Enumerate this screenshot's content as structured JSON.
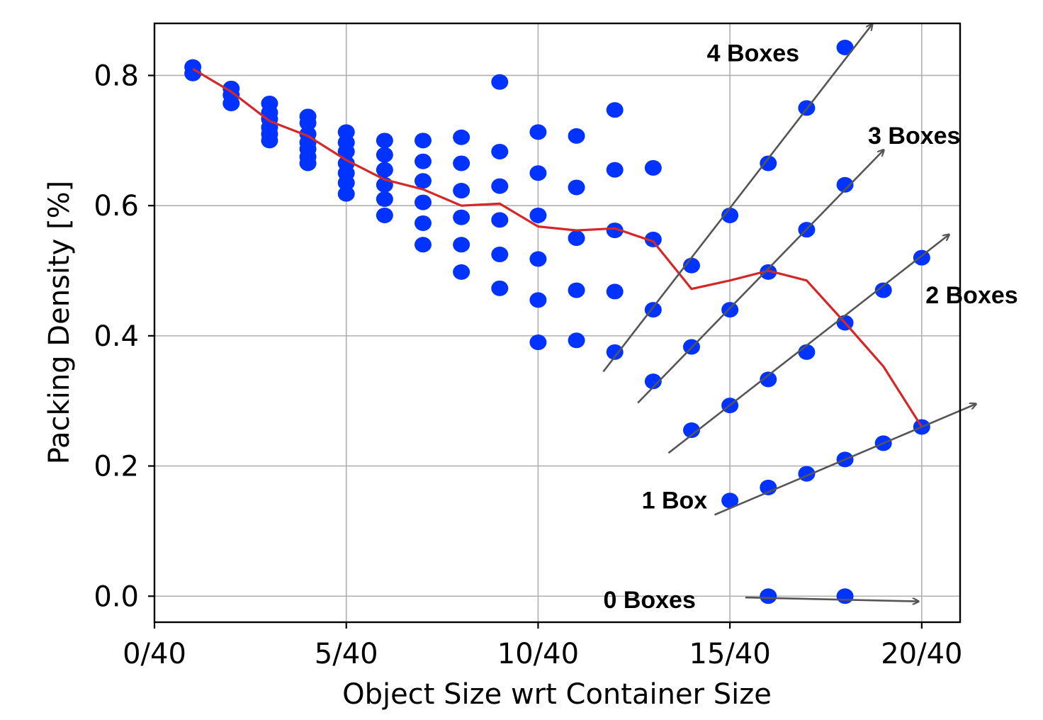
{
  "chart_data": {
    "type": "scatter",
    "xlabel": "Object Size wrt Container Size",
    "ylabel": "Packing Density [%]",
    "xlim": [
      0,
      21
    ],
    "ylim": [
      -0.04,
      0.88
    ],
    "x_ticks": [
      {
        "value": 0,
        "label": "0/40"
      },
      {
        "value": 5,
        "label": "5/40"
      },
      {
        "value": 10,
        "label": "10/40"
      },
      {
        "value": 15,
        "label": "15/40"
      },
      {
        "value": 20,
        "label": "20/40"
      }
    ],
    "y_ticks": [
      {
        "value": 0.0,
        "label": "0.0"
      },
      {
        "value": 0.2,
        "label": "0.2"
      },
      {
        "value": 0.4,
        "label": "0.4"
      },
      {
        "value": 0.6,
        "label": "0.6"
      },
      {
        "value": 0.8,
        "label": "0.8"
      }
    ],
    "grid": true,
    "colors": {
      "points": "#0033ff",
      "mean_line": "#d62728",
      "arrows": "#555555"
    },
    "series": [
      {
        "kind": "scatter",
        "points": [
          [
            1,
            0.813
          ],
          [
            1,
            0.803
          ],
          [
            2,
            0.78
          ],
          [
            2,
            0.77
          ],
          [
            2,
            0.757
          ],
          [
            3,
            0.757
          ],
          [
            3,
            0.743
          ],
          [
            3,
            0.733
          ],
          [
            3,
            0.72
          ],
          [
            3,
            0.71
          ],
          [
            3,
            0.7
          ],
          [
            4,
            0.737
          ],
          [
            4,
            0.727
          ],
          [
            4,
            0.71
          ],
          [
            4,
            0.697
          ],
          [
            4,
            0.687
          ],
          [
            4,
            0.675
          ],
          [
            4,
            0.665
          ],
          [
            5,
            0.713
          ],
          [
            5,
            0.697
          ],
          [
            5,
            0.683
          ],
          [
            5,
            0.665
          ],
          [
            5,
            0.65
          ],
          [
            5,
            0.635
          ],
          [
            5,
            0.618
          ],
          [
            6,
            0.7
          ],
          [
            6,
            0.678
          ],
          [
            6,
            0.655
          ],
          [
            6,
            0.632
          ],
          [
            6,
            0.61
          ],
          [
            6,
            0.585
          ],
          [
            7,
            0.7
          ],
          [
            7,
            0.668
          ],
          [
            7,
            0.638
          ],
          [
            7,
            0.605
          ],
          [
            7,
            0.573
          ],
          [
            7,
            0.54
          ],
          [
            8,
            0.705
          ],
          [
            8,
            0.665
          ],
          [
            8,
            0.623
          ],
          [
            8,
            0.582
          ],
          [
            8,
            0.54
          ],
          [
            8,
            0.498
          ],
          [
            9,
            0.79
          ],
          [
            9,
            0.683
          ],
          [
            9,
            0.63
          ],
          [
            9,
            0.578
          ],
          [
            9,
            0.525
          ],
          [
            9,
            0.473
          ],
          [
            10,
            0.713
          ],
          [
            10,
            0.65
          ],
          [
            10,
            0.585
          ],
          [
            10,
            0.518
          ],
          [
            10,
            0.455
          ],
          [
            10,
            0.39
          ],
          [
            11,
            0.707
          ],
          [
            11,
            0.628
          ],
          [
            11,
            0.55
          ],
          [
            11,
            0.47
          ],
          [
            11,
            0.393
          ],
          [
            12,
            0.747
          ],
          [
            12,
            0.655
          ],
          [
            12,
            0.562
          ],
          [
            12,
            0.468
          ],
          [
            12,
            0.375
          ],
          [
            13,
            0.658
          ],
          [
            13,
            0.548
          ],
          [
            13,
            0.44
          ],
          [
            13,
            0.33
          ],
          [
            14,
            0.508
          ],
          [
            14,
            0.383
          ],
          [
            14,
            0.255
          ],
          [
            15,
            0.585
          ],
          [
            15,
            0.44
          ],
          [
            15,
            0.293
          ],
          [
            15,
            0.147
          ],
          [
            16,
            0.665
          ],
          [
            16,
            0.498
          ],
          [
            16,
            0.333
          ],
          [
            16,
            0.167
          ],
          [
            16,
            0.0
          ],
          [
            17,
            0.75
          ],
          [
            17,
            0.563
          ],
          [
            17,
            0.375
          ],
          [
            17,
            0.188
          ],
          [
            18,
            0.843
          ],
          [
            18,
            0.632
          ],
          [
            18,
            0.42
          ],
          [
            18,
            0.21
          ],
          [
            18,
            0.0
          ],
          [
            19,
            0.47
          ],
          [
            19,
            0.235
          ],
          [
            20,
            0.52
          ],
          [
            20,
            0.26
          ]
        ]
      },
      {
        "kind": "line",
        "x": [
          1,
          2,
          3,
          4,
          5,
          6,
          7,
          8,
          9,
          10,
          11,
          12,
          13,
          14,
          15,
          16,
          17,
          18,
          19,
          20
        ],
        "y": [
          0.81,
          0.775,
          0.73,
          0.707,
          0.67,
          0.64,
          0.625,
          0.6,
          0.603,
          0.568,
          0.562,
          0.565,
          0.545,
          0.472,
          0.485,
          0.5,
          0.485,
          0.42,
          0.353,
          0.26
        ]
      }
    ],
    "arrows": [
      {
        "label": "4 Boxes",
        "from": [
          11.7,
          0.345
        ],
        "to": [
          18.7,
          0.878
        ]
      },
      {
        "label": "3 Boxes",
        "from": [
          12.6,
          0.297
        ],
        "to": [
          19.0,
          0.685
        ]
      },
      {
        "label": "2 Boxes",
        "from": [
          13.4,
          0.22
        ],
        "to": [
          20.7,
          0.555
        ]
      },
      {
        "label": "1 Box",
        "from": [
          14.6,
          0.125
        ],
        "to": [
          21.4,
          0.295
        ]
      },
      {
        "label": "0 Boxes",
        "from": [
          15.4,
          -0.002
        ],
        "to": [
          19.9,
          -0.008
        ]
      }
    ],
    "annotations": [
      {
        "text": "4 Boxes",
        "x": 14.4,
        "y": 0.822
      },
      {
        "text": "3 Boxes",
        "x": 18.6,
        "y": 0.695
      },
      {
        "text": "2 Boxes",
        "x": 20.1,
        "y": 0.45
      },
      {
        "text": "1 Box",
        "x": 12.7,
        "y": 0.135
      },
      {
        "text": "0 Boxes",
        "x": 11.7,
        "y": -0.018
      }
    ]
  }
}
